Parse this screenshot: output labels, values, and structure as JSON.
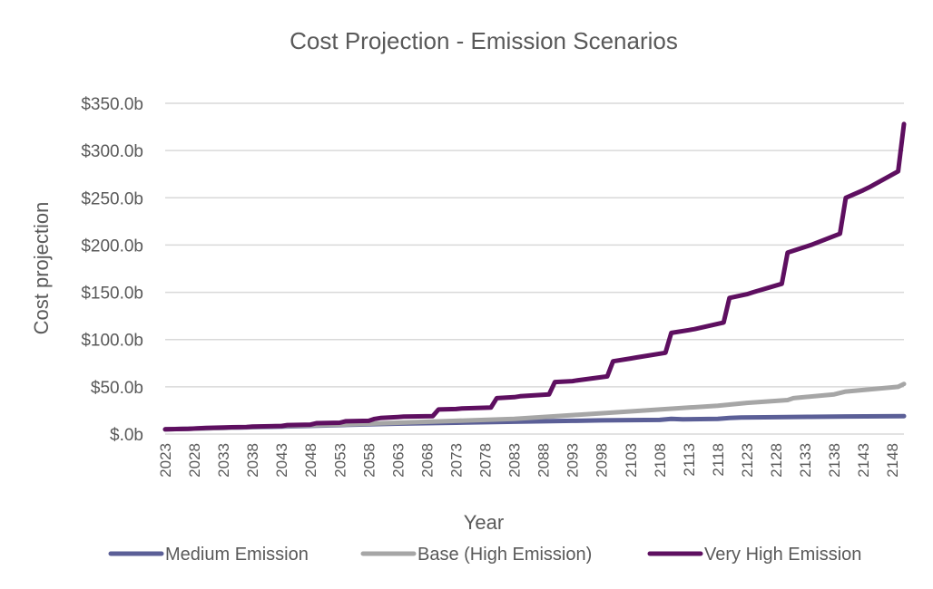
{
  "chart_data": {
    "type": "line",
    "title": "Cost Projection - Emission Scenarios",
    "xlabel": "Year",
    "ylabel": "Cost projection",
    "ylim": [
      0,
      350
    ],
    "yticks": [
      0,
      50,
      100,
      150,
      200,
      250,
      300,
      350
    ],
    "ytick_labels": [
      "$.0b",
      "$50.0b",
      "$100.0b",
      "$150.0b",
      "$200.0b",
      "$250.0b",
      "$300.0b",
      "$350.0b"
    ],
    "xlim": [
      2023,
      2150
    ],
    "xticks": [
      2023,
      2028,
      2033,
      2038,
      2043,
      2048,
      2053,
      2058,
      2063,
      2068,
      2073,
      2078,
      2083,
      2088,
      2093,
      2098,
      2103,
      2108,
      2113,
      2118,
      2123,
      2128,
      2133,
      2138,
      2143,
      2148
    ],
    "grid": true,
    "legend_position": "bottom",
    "series": [
      {
        "name": "Medium Emission",
        "color": "#5b5f97",
        "x": [
          2023,
          2033,
          2043,
          2053,
          2063,
          2073,
          2083,
          2093,
          2098,
          2108,
          2110,
          2112,
          2118,
          2120,
          2122,
          2128,
          2134,
          2140,
          2150
        ],
        "y": [
          5,
          6.5,
          8,
          9.5,
          11,
          12,
          13,
          14,
          14.5,
          15,
          16,
          15.5,
          16,
          17,
          17.5,
          17.8,
          18.2,
          18.6,
          19
        ]
      },
      {
        "name": "Base (High Emission)",
        "color": "#a6a6a6",
        "x": [
          2023,
          2033,
          2043,
          2053,
          2063,
          2073,
          2083,
          2093,
          2103,
          2113,
          2118,
          2123,
          2130,
          2131,
          2138,
          2140,
          2149,
          2150
        ],
        "y": [
          5,
          6.5,
          8.5,
          10,
          12,
          14,
          16,
          20,
          24,
          28,
          30,
          33,
          36,
          38,
          42,
          45,
          50,
          53
        ]
      },
      {
        "name": "Very High Emission",
        "color": "#5e0f60",
        "x": [
          2023,
          2027,
          2030,
          2033,
          2037,
          2038,
          2043,
          2044,
          2048,
          2049,
          2053,
          2054,
          2058,
          2059,
          2060,
          2063,
          2064,
          2069,
          2070,
          2073,
          2074,
          2079,
          2080,
          2083,
          2084,
          2089,
          2090,
          2093,
          2094,
          2099,
          2100,
          2103,
          2104,
          2109,
          2110,
          2113,
          2114,
          2119,
          2120,
          2123,
          2124,
          2129,
          2130,
          2133,
          2134,
          2139,
          2140,
          2143,
          2144,
          2149,
          2150
        ],
        "y": [
          5,
          5.5,
          6.5,
          7,
          7.5,
          8,
          8.5,
          9.5,
          10,
          11.5,
          12,
          13.5,
          14,
          16,
          17,
          18,
          18.5,
          19,
          26,
          26.5,
          27,
          28,
          38,
          39,
          40,
          42,
          55,
          56,
          57,
          61,
          77,
          80,
          81,
          86,
          107,
          110,
          111,
          118,
          144,
          148,
          150,
          159,
          192,
          198,
          200,
          212,
          250,
          258,
          261,
          278,
          328
        ]
      }
    ]
  }
}
